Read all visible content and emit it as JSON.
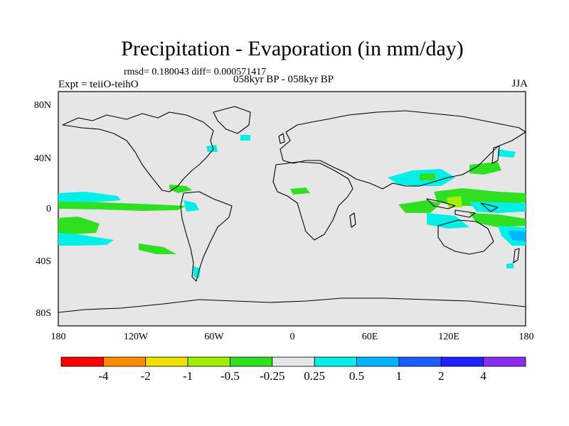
{
  "title": "Precipitation - Evaporation (in mm/day)",
  "stats_text": "rmsd= 0.180043 diff= 0.000571417",
  "experiment_label": "Expt = teiiO-teihO",
  "periods_label": "058kyr BP - 058kyr BP",
  "season_label": "JJA",
  "map": {
    "y_ticks": [
      "80N",
      "40N",
      "0",
      "40S",
      "80S"
    ],
    "x_ticks": [
      "180",
      "120W",
      "60W",
      "0",
      "60E",
      "120E",
      "180"
    ]
  },
  "colorbar": {
    "colors": [
      "#ff0000",
      "#ff8c00",
      "#f0e000",
      "#a0f000",
      "#2ee020",
      "#e6e6e6",
      "#00f0e8",
      "#00b4ff",
      "#1a5cff",
      "#2020ff",
      "#8c2cf0"
    ],
    "labels": [
      "-4",
      "-2",
      "-1",
      "-0.5",
      "-0.25",
      "0.25",
      "0.5",
      "1",
      "2",
      "4"
    ]
  },
  "colors": {
    "ocean": "#e6e6e6",
    "coast": "#000000"
  }
}
